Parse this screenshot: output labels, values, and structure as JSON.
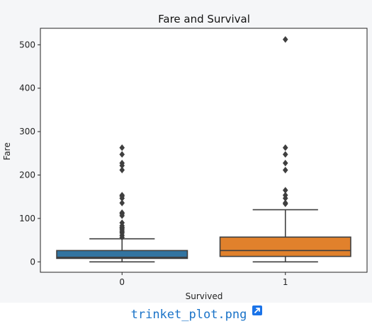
{
  "chart_data": {
    "type": "box",
    "title": "Fare and Survival",
    "xlabel": "Survived",
    "ylabel": "Fare",
    "categories": [
      "0",
      "1"
    ],
    "ylim": [
      -24,
      538
    ],
    "yticks": [
      0,
      100,
      200,
      300,
      400,
      500
    ],
    "grid": false,
    "boxes": [
      {
        "category": "0",
        "color": "#3274a1",
        "whisker_low": 0,
        "q1": 7.9,
        "median": 10.5,
        "q3": 26,
        "whisker_high": 53,
        "outliers": [
          263,
          247.5,
          227.5,
          221.8,
          211.5,
          153.5,
          151.6,
          146.5,
          135.6,
          113.3,
          110.9,
          106.4,
          90,
          83.2,
          79.2,
          77.3,
          73.5,
          69.5,
          66.6,
          61.2,
          56.5
        ]
      },
      {
        "category": "1",
        "color": "#e1812c",
        "whisker_low": 0,
        "q1": 12.5,
        "median": 26,
        "q3": 57,
        "whisker_high": 120,
        "outliers": [
          512.3,
          263,
          247.5,
          227.5,
          211.3,
          164.9,
          153.5,
          146.5,
          135.6,
          133.7
        ]
      }
    ]
  },
  "colors": {
    "panel_bg": "#f5f6f8",
    "link": "#1a73c8",
    "link_icon": "#1a73e8",
    "box_edge": "#3f3f3f"
  },
  "file_link": {
    "label": "trinket_plot.png",
    "icon": "external-link-icon"
  }
}
